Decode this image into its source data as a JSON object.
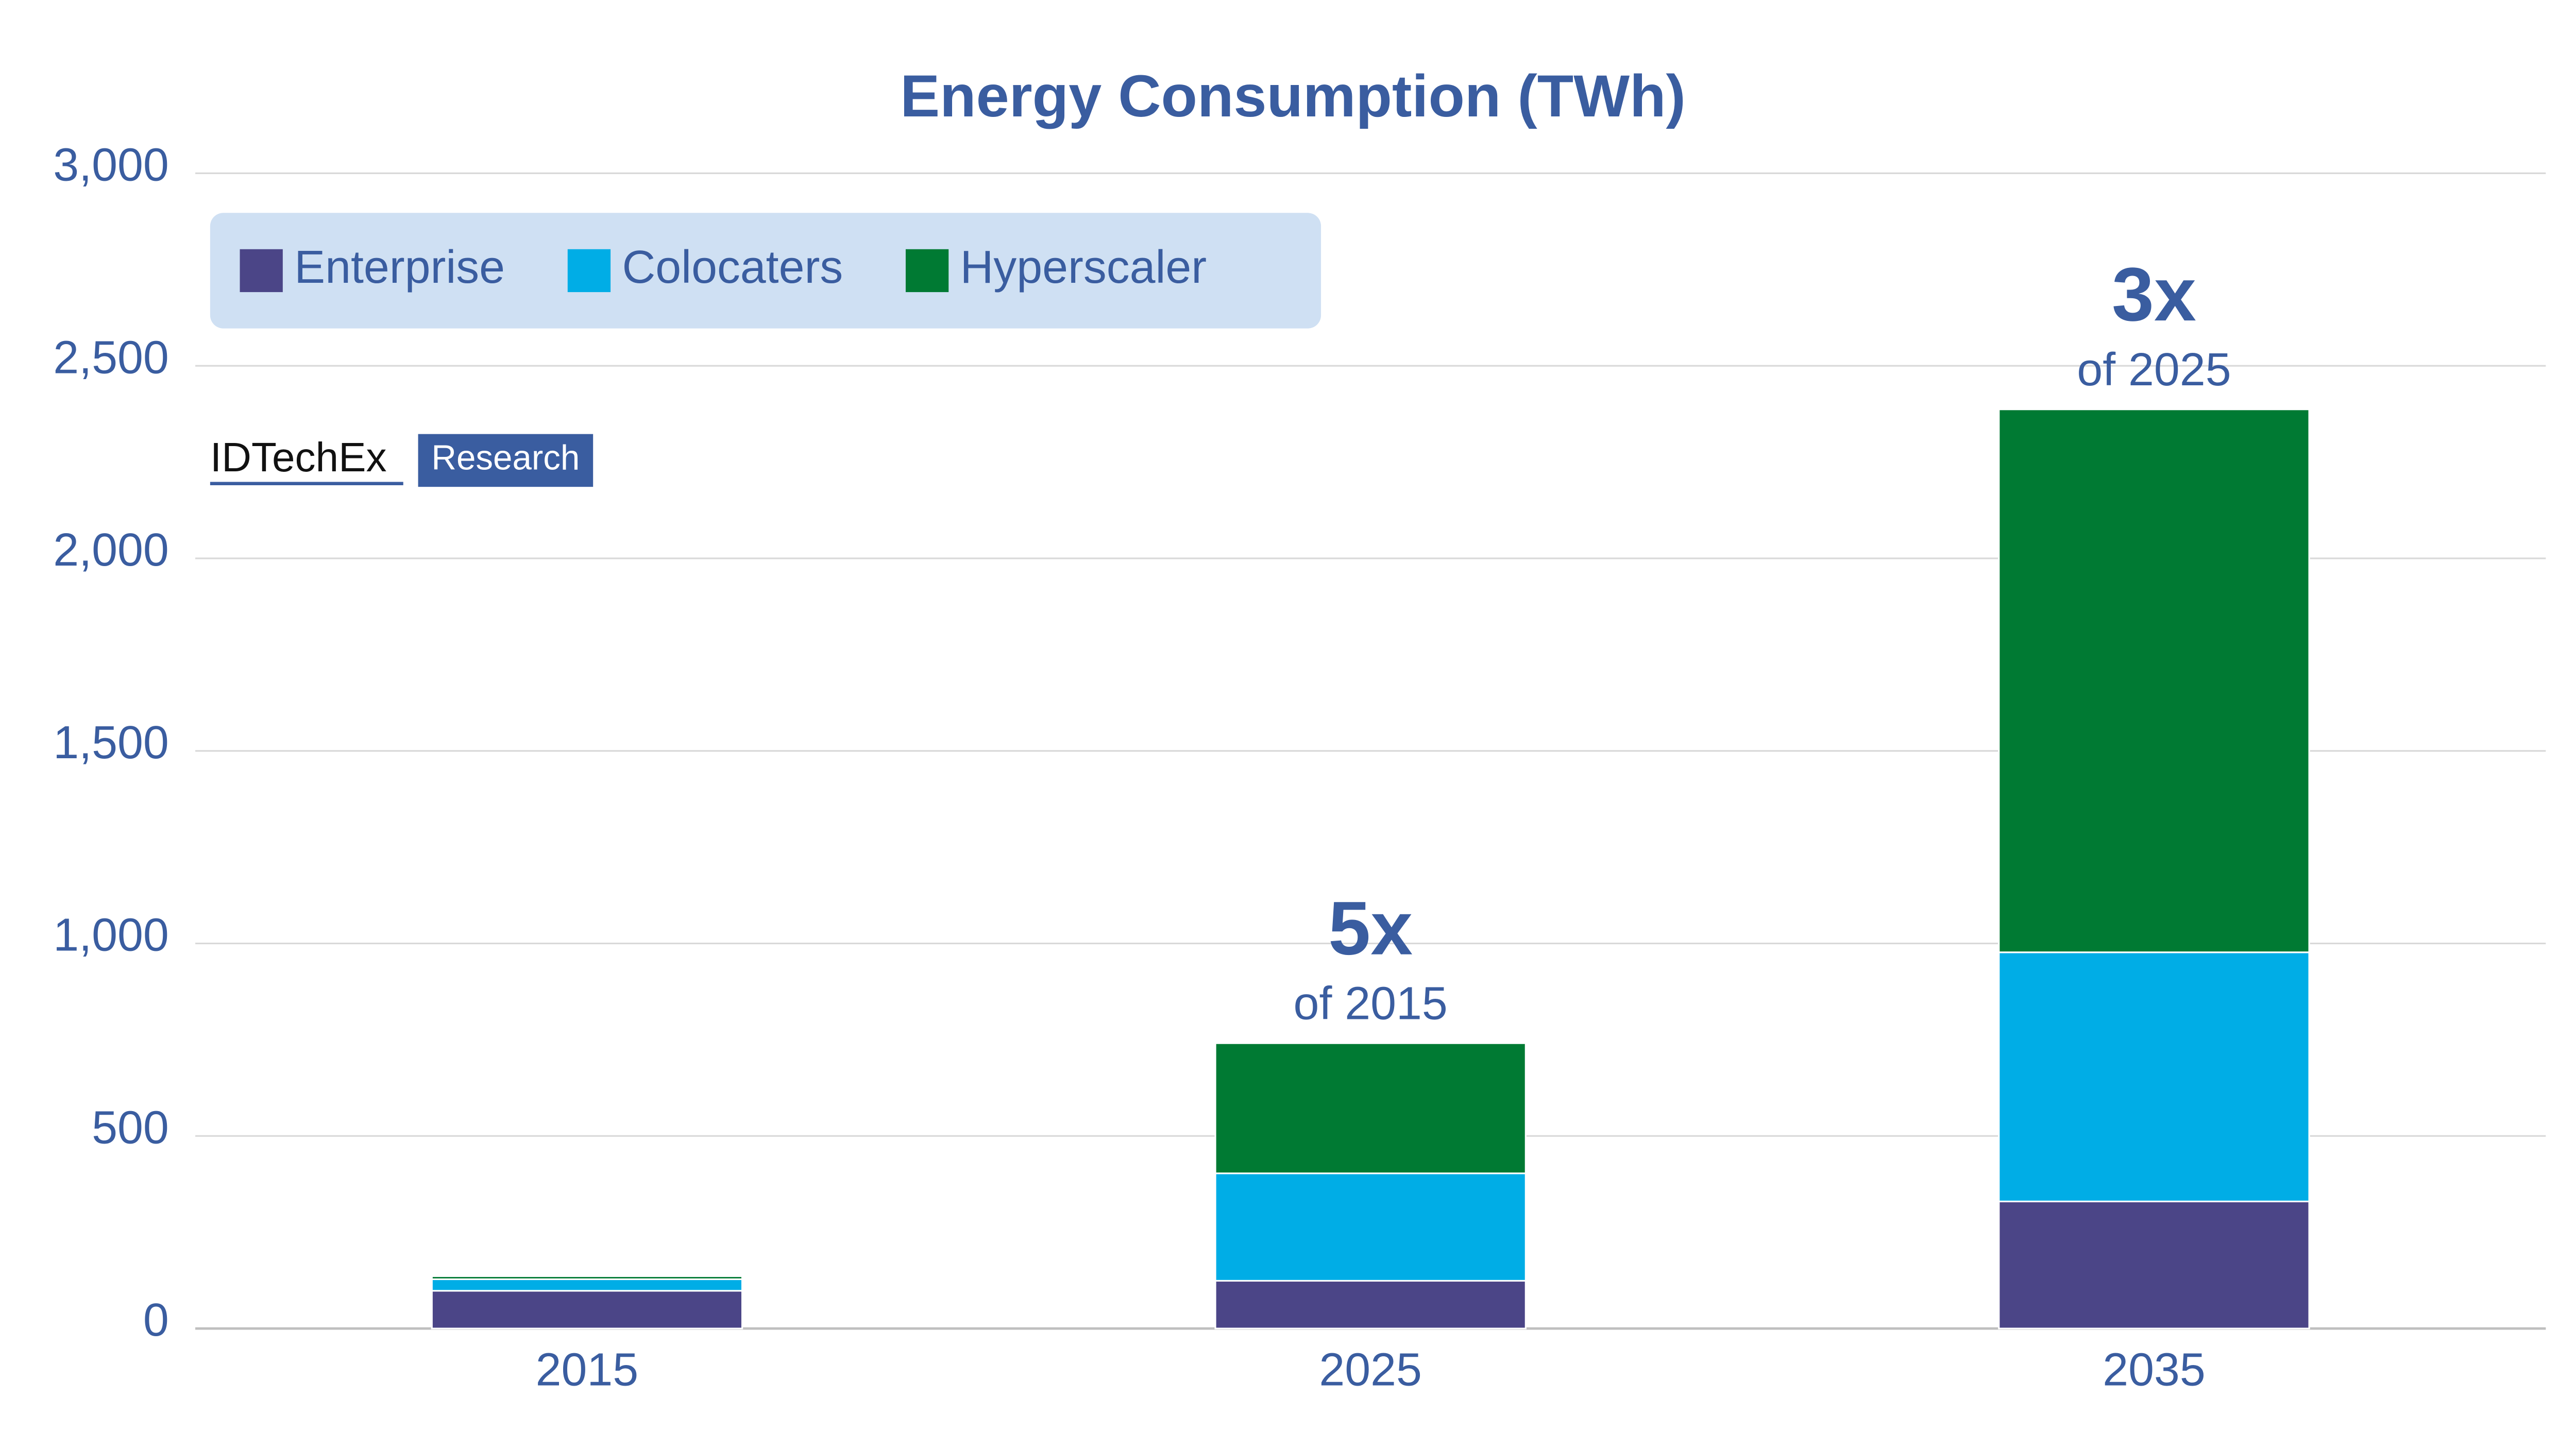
{
  "chart_data": {
    "type": "stacked_bar",
    "title": "Energy Consumption (TWh)",
    "categories": [
      "2015",
      "2025",
      "2035"
    ],
    "series": [
      {
        "name": "Enterprise",
        "color": "#4b4587",
        "values": [
          98,
          124,
          330
        ]
      },
      {
        "name": "Colocaters",
        "color": "#00ade6",
        "values": [
          30,
          279,
          647
        ]
      },
      {
        "name": "Hyperscaler",
        "color": "#007a33",
        "values": [
          8,
          338,
          1410
        ]
      }
    ],
    "ylim": [
      0,
      3000
    ],
    "yticks": [
      0,
      500,
      {
        "value": 1000,
        "label": "1,000"
      },
      {
        "value": 1500,
        "label": "1,500"
      },
      {
        "value": 2000,
        "label": "2,000"
      },
      {
        "value": 2500,
        "label": "2,500"
      },
      {
        "value": 3000,
        "label": "3,000"
      }
    ],
    "grid": true,
    "legend": "top-left",
    "annotations": [
      {
        "label": "5x",
        "note": "of 2015"
      },
      {
        "label": "3x",
        "note": "of 2025"
      }
    ]
  },
  "logo": {
    "name": "IDTechEx",
    "tag": "Research"
  }
}
